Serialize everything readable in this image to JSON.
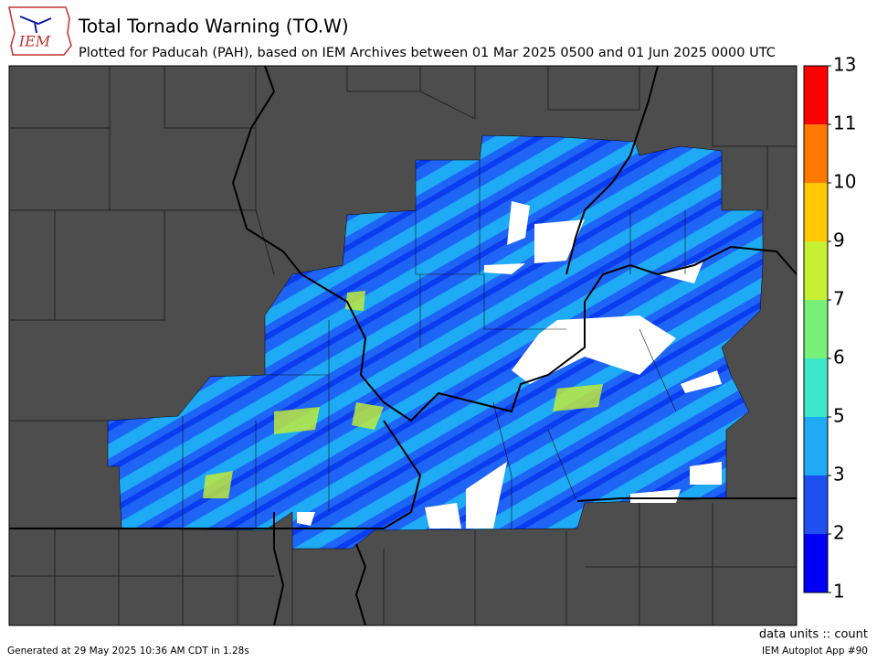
{
  "header": {
    "title": "Total Tornado Warning (TO.W)",
    "subtitle": "Plotted for Paducah (PAH), based on IEM Archives  between 01 Mar 2025 0500 and 01 Jun 2025 0000 UTC",
    "logo": "IEM"
  },
  "colorbar": {
    "ticks": [
      1,
      2,
      3,
      5,
      6,
      7,
      9,
      10,
      11,
      13
    ],
    "colors": [
      "#0000f5",
      "#1e50f0",
      "#1eaaf5",
      "#3ce6c8",
      "#78f078",
      "#c8f032",
      "#ffc800",
      "#ff7800",
      "#ff0000"
    ],
    "units": "data units :: count"
  },
  "footer": {
    "generated": "Generated at 29 May 2025 10:36 AM CDT in 1.28s",
    "app": "IEM Autoplot App #90"
  }
}
